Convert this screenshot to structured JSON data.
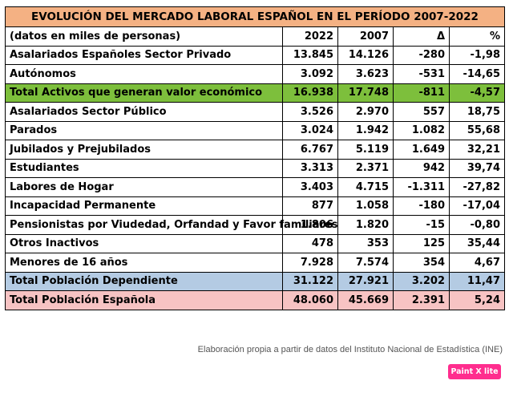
{
  "table": {
    "title": "EVOLUCIÓN DEL MERCADO LABORAL ESPAÑOL EN EL PERÍODO 2007-2022",
    "header": {
      "label": "(datos en miles de personas)",
      "col_2022": "2022",
      "col_2007": "2007",
      "col_delta": "Δ",
      "col_pct": "%"
    },
    "rows": [
      {
        "label": "Asalariados Españoles Sector Privado",
        "v2022": "13.845",
        "v2007": "14.126",
        "delta": "-280",
        "pct": "-1,98"
      },
      {
        "label": "Autónomos",
        "v2022": "3.092",
        "v2007": "3.623",
        "delta": "-531",
        "pct": "-14,65"
      },
      {
        "label": "Total Activos que generan valor económico",
        "v2022": "16.938",
        "v2007": "17.748",
        "delta": "-811",
        "pct": "-4,57"
      },
      {
        "label": "Asalariados Sector Público",
        "v2022": "3.526",
        "v2007": "2.970",
        "delta": "557",
        "pct": "18,75"
      },
      {
        "label": "Parados",
        "v2022": "3.024",
        "v2007": "1.942",
        "delta": "1.082",
        "pct": "55,68"
      },
      {
        "label": "Jubilados y Prejubilados",
        "v2022": "6.767",
        "v2007": "5.119",
        "delta": "1.649",
        "pct": "32,21"
      },
      {
        "label": "Estudiantes",
        "v2022": "3.313",
        "v2007": "2.371",
        "delta": "942",
        "pct": "39,74"
      },
      {
        "label": "Labores de Hogar",
        "v2022": "3.403",
        "v2007": "4.715",
        "delta": "-1.311",
        "pct": "-27,82"
      },
      {
        "label": "Incapacidad Permanente",
        "v2022": "877",
        "v2007": "1.058",
        "delta": "-180",
        "pct": "-17,04"
      },
      {
        "label": "Pensionistas por Viudedad, Orfandad y Favor familiares",
        "v2022": "1.806",
        "v2007": "1.820",
        "delta": "-15",
        "pct": "-0,80"
      },
      {
        "label": "Otros Inactivos",
        "v2022": "478",
        "v2007": "353",
        "delta": "125",
        "pct": "35,44"
      },
      {
        "label": "Menores de 16 años",
        "v2022": "7.928",
        "v2007": "7.574",
        "delta": "354",
        "pct": "4,67"
      },
      {
        "label": "Total Población Dependiente",
        "v2022": "31.122",
        "v2007": "27.921",
        "delta": "3.202",
        "pct": "11,47"
      },
      {
        "label": "Total Población Española",
        "v2022": "48.060",
        "v2007": "45.669",
        "delta": "2.391",
        "pct": "5,24"
      }
    ]
  },
  "source_note": "Elaboración propia a partir de datos del Instituto Nacional de Estadística (INE)",
  "watermark": "Paint X lite",
  "colors": {
    "title_bg": "#f4b183",
    "green_row_bg": "#7dbf3c",
    "blue_row_bg": "#b4cbe3",
    "pink_row_bg": "#f7c3c3",
    "watermark_bg": "#ff2d8e"
  }
}
